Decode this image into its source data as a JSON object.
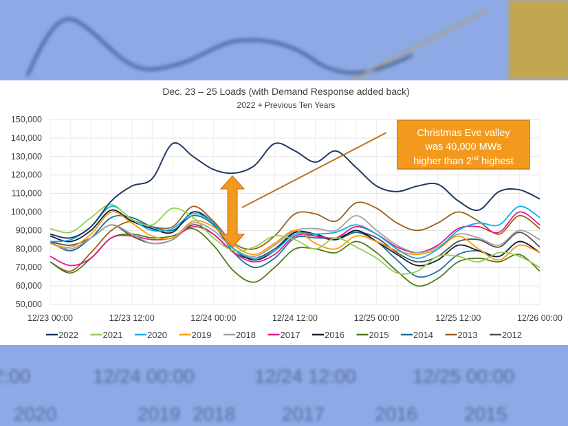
{
  "chart_data": {
    "type": "line",
    "title": "Dec. 23 – 25 Loads (with Demand Response added back)",
    "subtitle": "2022 + Previous Ten Years",
    "xlabel": "",
    "ylabel": "",
    "x_hours_step": 3,
    "x_ticks": [
      "12/23 00:00",
      "12/23 12:00",
      "12/24 00:00",
      "12/24 12:00",
      "12/25 00:00",
      "12/25 12:00",
      "12/26 00:00"
    ],
    "y_ticks": [
      "50,000",
      "60,000",
      "70,000",
      "80,000",
      "90,000",
      "100,000",
      "110,000",
      "120,000",
      "130,000",
      "140,000",
      "150,000"
    ],
    "ylim": [
      50000,
      150000
    ],
    "grid": true,
    "legend_placement": "bottom",
    "annotation": {
      "lines": [
        "Christmas Eve valley",
        "was 40,000 MWs",
        "higher than 2",
        "nd",
        " highest"
      ],
      "color": "#f39a1e"
    },
    "series": [
      {
        "name": "2022",
        "color": "#1f3864",
        "values": [
          88,
          86,
          92,
          106,
          114,
          118,
          137,
          130,
          123,
          121,
          125,
          137,
          133,
          127,
          133,
          124,
          114,
          111,
          114,
          115,
          106,
          101,
          111,
          112,
          107
        ]
      },
      {
        "name": "2021",
        "color": "#92d050",
        "values": [
          91,
          89,
          97,
          104,
          96,
          93,
          102,
          97,
          86,
          79,
          81,
          87,
          85,
          80,
          86,
          81,
          75,
          67,
          68,
          76,
          76,
          73,
          78,
          76,
          70
        ]
      },
      {
        "name": "2020",
        "color": "#00b0f0",
        "values": [
          84,
          85,
          92,
          103,
          96,
          90,
          91,
          99,
          94,
          80,
          75,
          79,
          88,
          88,
          89,
          93,
          88,
          80,
          75,
          80,
          90,
          94,
          93,
          103,
          97
        ]
      },
      {
        "name": "2019",
        "color": "#ff9900",
        "values": [
          83,
          81,
          88,
          100,
          94,
          87,
          86,
          95,
          92,
          82,
          77,
          83,
          90,
          83,
          80,
          87,
          84,
          79,
          77,
          80,
          87,
          80,
          74,
          82,
          78
        ]
      },
      {
        "name": "2018",
        "color": "#a0a0a0",
        "values": [
          83,
          80,
          86,
          93,
          88,
          83,
          85,
          94,
          90,
          80,
          76,
          82,
          90,
          91,
          90,
          98,
          90,
          82,
          78,
          81,
          88,
          86,
          82,
          90,
          85
        ]
      },
      {
        "name": "2017",
        "color": "#e6188a",
        "values": [
          76,
          71,
          75,
          86,
          87,
          85,
          86,
          92,
          88,
          78,
          73,
          77,
          87,
          87,
          86,
          92,
          88,
          81,
          78,
          82,
          91,
          92,
          89,
          100,
          93
        ]
      },
      {
        "name": "2016",
        "color": "#0f1f3d",
        "values": [
          87,
          84,
          90,
          101,
          95,
          91,
          89,
          100,
          94,
          80,
          74,
          79,
          89,
          88,
          85,
          90,
          84,
          77,
          71,
          74,
          82,
          79,
          76,
          84,
          78
        ]
      },
      {
        "name": "2015",
        "color": "#4f7a1a",
        "values": [
          73,
          67,
          75,
          86,
          88,
          86,
          87,
          91,
          82,
          68,
          62,
          70,
          80,
          80,
          78,
          84,
          78,
          68,
          60,
          64,
          73,
          75,
          73,
          77,
          68
        ]
      },
      {
        "name": "2014",
        "color": "#1b6f9a",
        "values": [
          84,
          79,
          86,
          97,
          97,
          92,
          90,
          98,
          93,
          78,
          70,
          75,
          86,
          86,
          86,
          89,
          84,
          74,
          65,
          68,
          77,
          79,
          76,
          84,
          78
        ]
      },
      {
        "name": "2013",
        "color": "#996017",
        "values": [
          73,
          68,
          78,
          90,
          95,
          92,
          92,
          103,
          95,
          83,
          80,
          87,
          99,
          99,
          95,
          105,
          102,
          94,
          90,
          94,
          100,
          95,
          88,
          98,
          91
        ]
      },
      {
        "name": "2012",
        "color": "#505050",
        "values": [
          84,
          82,
          86,
          93,
          87,
          83,
          85,
          93,
          88,
          78,
          75,
          80,
          89,
          87,
          85,
          89,
          86,
          78,
          73,
          76,
          84,
          85,
          81,
          89,
          81
        ]
      }
    ]
  }
}
